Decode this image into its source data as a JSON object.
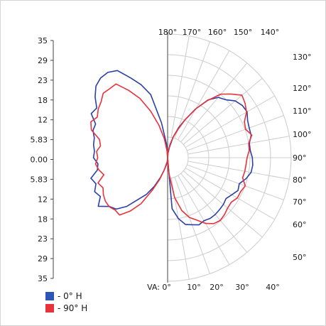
{
  "chart_data": {
    "type": "polar",
    "title": "",
    "intensity_axis": {
      "labels": [
        "35",
        "29",
        "23",
        "18",
        "12",
        "5.83",
        "0.00",
        "5.83",
        "12",
        "18",
        "23",
        "29",
        "35"
      ],
      "max": 35
    },
    "angle_labels_top": [
      "180°",
      "170°",
      "160°",
      "150°",
      "140°"
    ],
    "angle_labels_right": [
      "130°",
      "120°",
      "110°",
      "100°",
      "90°",
      "80°",
      "70°",
      "60°",
      "50°"
    ],
    "angle_labels_bottom": [
      "VA: 0°",
      "10°",
      "20°",
      "30°",
      "40°"
    ],
    "grid": true,
    "legend_position": "bottom-left",
    "series": [
      {
        "name": "- 0° H",
        "color": "#2b3fa8",
        "points": [
          [
            0,
            0
          ],
          [
            5,
            14.5
          ],
          [
            10,
            17.5
          ],
          [
            15,
            19.6
          ],
          [
            20,
            20.2
          ],
          [
            25,
            21.0
          ],
          [
            30,
            20.6
          ],
          [
            35,
            21.0
          ],
          [
            40,
            21.0
          ],
          [
            45,
            20.8
          ],
          [
            50,
            20.6
          ],
          [
            55,
            20.2
          ],
          [
            60,
            21.0
          ],
          [
            65,
            22.0
          ],
          [
            70,
            21.6
          ],
          [
            75,
            23.0
          ],
          [
            80,
            24.0
          ],
          [
            85,
            24.2
          ],
          [
            90,
            24.0
          ],
          [
            95,
            23.5
          ],
          [
            100,
            23.5
          ],
          [
            105,
            24.5
          ],
          [
            110,
            24.6
          ],
          [
            115,
            25.0
          ],
          [
            120,
            26.0
          ],
          [
            125,
            25.8
          ],
          [
            130,
            25.0
          ],
          [
            135,
            23.2
          ],
          [
            140,
            22.3
          ],
          [
            145,
            20.0
          ],
          [
            150,
            16.0
          ],
          [
            155,
            12.0
          ],
          [
            160,
            9.0
          ],
          [
            165,
            6.0
          ],
          [
            170,
            3.0
          ],
          [
            175,
            1.2
          ],
          [
            180,
            0
          ],
          [
            185,
            4.0
          ],
          [
            190,
            10.0
          ],
          [
            195,
            18.5
          ],
          [
            200,
            22.0
          ],
          [
            205,
            25.0
          ],
          [
            210,
            28.5
          ],
          [
            215,
            29.5
          ],
          [
            220,
            29.5
          ],
          [
            225,
            28.7
          ],
          [
            230,
            26.8
          ],
          [
            235,
            24.5
          ],
          [
            240,
            25.0
          ],
          [
            245,
            22.5
          ],
          [
            250,
            22.5
          ],
          [
            255,
            21.5
          ],
          [
            260,
            21.3
          ],
          [
            265,
            20.8
          ],
          [
            270,
            21.0
          ],
          [
            275,
            19.8
          ],
          [
            280,
            20.2
          ],
          [
            285,
            22.5
          ],
          [
            290,
            21.6
          ],
          [
            295,
            22.8
          ],
          [
            300,
            22.0
          ],
          [
            305,
            24.0
          ],
          [
            310,
            21.5
          ],
          [
            315,
            20.6
          ],
          [
            320,
            18.0
          ],
          [
            325,
            14.4
          ],
          [
            330,
            12.0
          ],
          [
            335,
            9.0
          ],
          [
            340,
            6.0
          ],
          [
            345,
            3.5
          ],
          [
            350,
            2.0
          ],
          [
            355,
            1.0
          ],
          [
            360,
            0
          ]
        ]
      },
      {
        "name": "- 90° H",
        "color": "#e8323c",
        "points": [
          [
            0,
            0
          ],
          [
            5,
            4.5
          ],
          [
            10,
            11.5
          ],
          [
            15,
            15.5
          ],
          [
            20,
            18.0
          ],
          [
            25,
            19.5
          ],
          [
            30,
            21.5
          ],
          [
            35,
            22.8
          ],
          [
            40,
            23.2
          ],
          [
            45,
            22.8
          ],
          [
            50,
            22.2
          ],
          [
            55,
            22.0
          ],
          [
            60,
            22.8
          ],
          [
            65,
            22.8
          ],
          [
            70,
            23.4
          ],
          [
            75,
            22.0
          ],
          [
            80,
            22.2
          ],
          [
            85,
            22.3
          ],
          [
            90,
            22.5
          ],
          [
            95,
            23.2
          ],
          [
            100,
            23.3
          ],
          [
            105,
            24.7
          ],
          [
            110,
            23.5
          ],
          [
            115,
            24.0
          ],
          [
            120,
            25.8
          ],
          [
            125,
            26.8
          ],
          [
            130,
            27.5
          ],
          [
            135,
            25.5
          ],
          [
            140,
            23.5
          ],
          [
            145,
            19.8
          ],
          [
            150,
            16.0
          ],
          [
            155,
            12.0
          ],
          [
            160,
            8.5
          ],
          [
            165,
            6.0
          ],
          [
            170,
            3.8
          ],
          [
            175,
            1.8
          ],
          [
            180,
            0
          ],
          [
            185,
            2.0
          ],
          [
            190,
            5.5
          ],
          [
            195,
            9.5
          ],
          [
            200,
            14.0
          ],
          [
            205,
            18.5
          ],
          [
            210,
            22.0
          ],
          [
            215,
            25.5
          ],
          [
            220,
            25.5
          ],
          [
            225,
            25.8
          ],
          [
            230,
            24.6
          ],
          [
            235,
            24.0
          ],
          [
            240,
            23.0
          ],
          [
            245,
            24.0
          ],
          [
            250,
            23.0
          ],
          [
            255,
            20.0
          ],
          [
            260,
            19.3
          ],
          [
            265,
            20.2
          ],
          [
            270,
            19.8
          ],
          [
            275,
            20.5
          ],
          [
            280,
            19.8
          ],
          [
            285,
            18.7
          ],
          [
            290,
            21.0
          ],
          [
            295,
            20.2
          ],
          [
            300,
            21.0
          ],
          [
            305,
            21.5
          ],
          [
            310,
            21.6
          ],
          [
            315,
            21.0
          ],
          [
            320,
            21.2
          ],
          [
            325,
            18.5
          ],
          [
            330,
            15.0
          ],
          [
            335,
            10.0
          ],
          [
            340,
            6.5
          ],
          [
            345,
            3.5
          ],
          [
            350,
            1.5
          ],
          [
            355,
            1.0
          ],
          [
            360,
            0
          ]
        ]
      }
    ]
  }
}
